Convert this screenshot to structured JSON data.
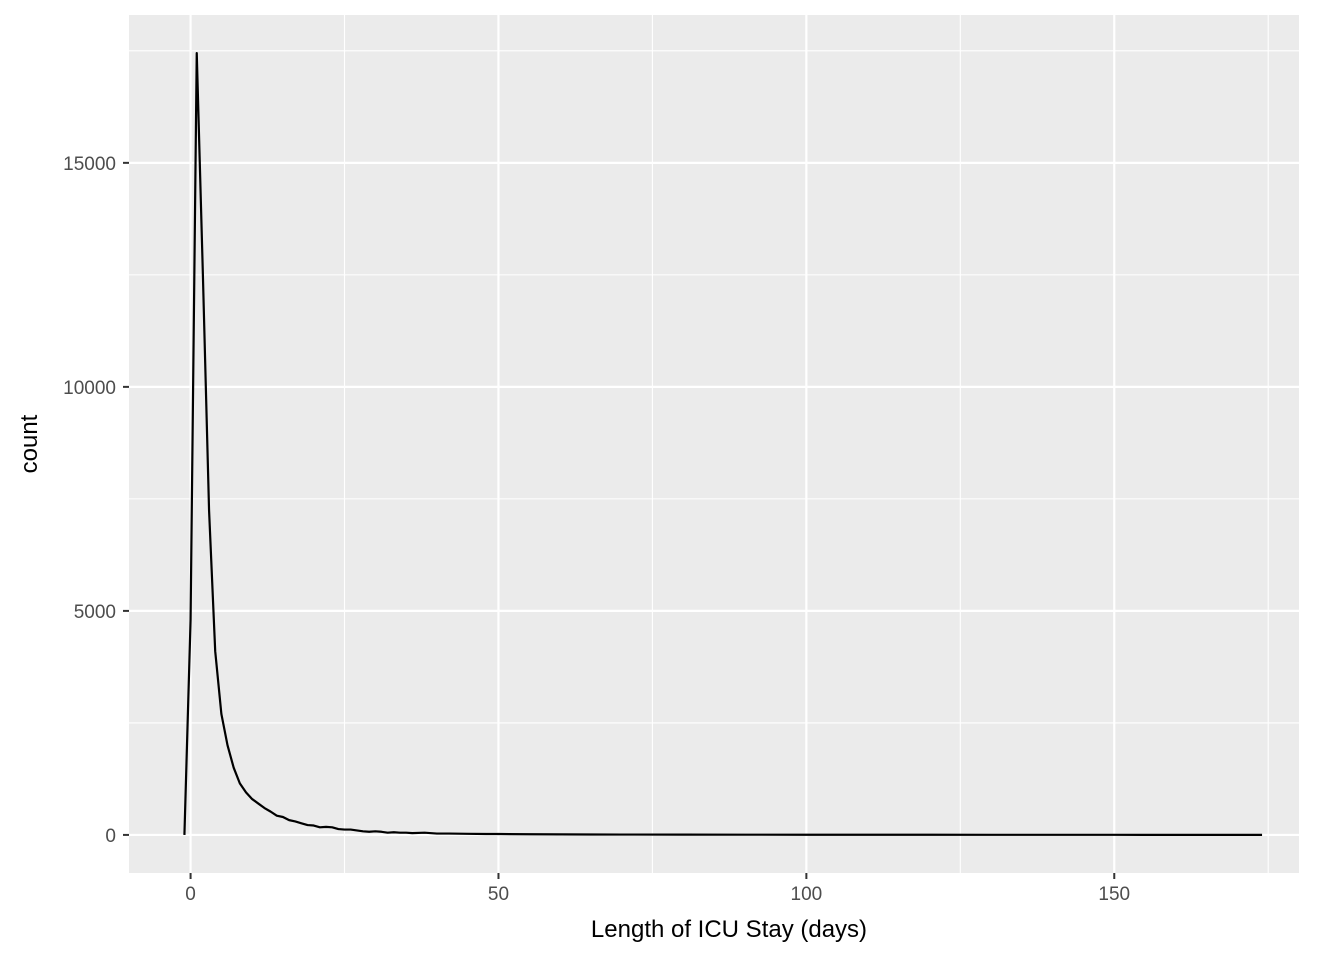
{
  "chart_data": {
    "type": "line",
    "title": "",
    "xlabel": "Length of ICU Stay (days)",
    "ylabel": "count",
    "xlim": [
      -10,
      180
    ],
    "ylim": [
      -850,
      18300
    ],
    "x_ticks": [
      0,
      50,
      100,
      150
    ],
    "x_tick_labels": [
      "0",
      "50",
      "100",
      "150"
    ],
    "y_ticks": [
      0,
      5000,
      10000,
      15000
    ],
    "y_tick_labels": [
      "0",
      "5000",
      "10000",
      "15000"
    ],
    "grid": true,
    "legend": "none",
    "series": [
      {
        "x": [
          -1,
          0,
          1,
          2,
          3,
          4,
          5,
          6,
          7,
          8,
          9,
          10,
          11,
          12,
          13,
          14,
          15,
          16,
          17,
          18,
          19,
          20,
          21,
          22,
          23,
          24,
          25,
          26,
          27,
          28,
          29,
          30,
          31,
          32,
          33,
          34,
          35,
          36,
          38,
          40,
          42,
          45,
          48,
          50,
          55,
          60,
          65,
          70,
          80,
          90,
          100,
          110,
          120,
          130,
          140,
          150,
          160,
          174
        ],
        "values": [
          0,
          4800,
          17450,
          12500,
          7250,
          4100,
          2700,
          2000,
          1500,
          1150,
          950,
          800,
          700,
          600,
          520,
          430,
          400,
          330,
          300,
          260,
          220,
          210,
          170,
          180,
          170,
          130,
          120,
          120,
          100,
          80,
          70,
          80,
          70,
          50,
          60,
          50,
          50,
          40,
          50,
          30,
          30,
          25,
          20,
          20,
          15,
          12,
          10,
          8,
          6,
          5,
          4,
          3,
          3,
          2,
          2,
          2,
          1,
          1
        ],
        "color": "#000000"
      }
    ]
  }
}
